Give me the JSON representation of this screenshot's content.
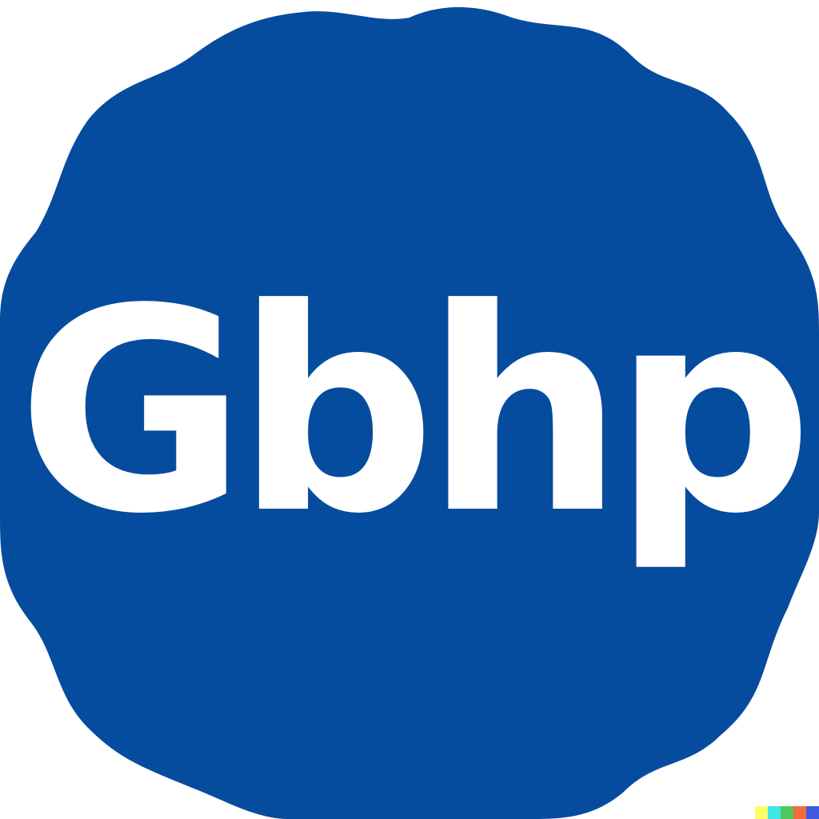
{
  "badge": {
    "text": "Gbhp",
    "fill_color": "#064c9e",
    "text_color": "#ffffff",
    "background_color": "#ffffff"
  },
  "corner_swatches": [
    {
      "color": "#fffe66"
    },
    {
      "color": "#41e6e6"
    },
    {
      "color": "#52c65b"
    },
    {
      "color": "#f26d3a"
    },
    {
      "color": "#3d5ae0"
    }
  ]
}
